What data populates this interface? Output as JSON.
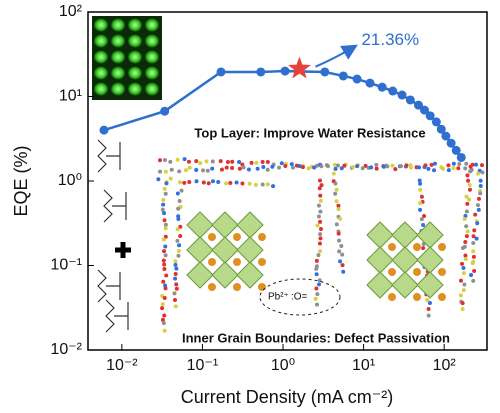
{
  "chart_data": {
    "type": "line",
    "x_label": "Current Density (mA cm⁻²)",
    "y_label": "EQE (%)",
    "log_x": true,
    "log_y": true,
    "xlim": [
      0.0038,
      340
    ],
    "ylim": [
      0.01,
      100
    ],
    "xticks": [
      {
        "value": 0.01,
        "label": "10⁻²"
      },
      {
        "value": 0.1,
        "label": "10⁻¹"
      },
      {
        "value": 1,
        "label": "10⁰"
      },
      {
        "value": 10,
        "label": "10¹"
      },
      {
        "value": 100,
        "label": "10²"
      }
    ],
    "yticks": [
      {
        "value": 0.01,
        "label": "10⁻²"
      },
      {
        "value": 0.1,
        "label": "10⁻¹"
      },
      {
        "value": 1,
        "label": "10⁰"
      },
      {
        "value": 10,
        "label": "10¹"
      },
      {
        "value": 100,
        "label": "10²"
      }
    ],
    "series": [
      {
        "color": "#2f6fcd",
        "x": [
          0.006,
          0.034,
          0.17,
          0.53,
          1.06,
          3.3,
          5.6,
          8.3,
          12,
          17,
          23,
          30,
          38,
          48,
          57,
          67,
          80,
          92,
          105,
          122,
          141,
          163
        ],
        "values": [
          4.0,
          6.7,
          19.5,
          19.5,
          20,
          19.5,
          17.5,
          16.1,
          14.4,
          12.9,
          11.6,
          10.4,
          9.1,
          7.9,
          6.9,
          5.9,
          5.0,
          4.1,
          3.4,
          2.8,
          2.3,
          1.9
        ]
      }
    ],
    "peak": {
      "x": 1.6,
      "y": 21.36,
      "label": "21.36%",
      "color": "#e8413a"
    },
    "annotations": [
      "Top Layer: Improve Water Resistance",
      "Inner Grain Boundaries: Defect Passivation",
      "Pb²⁺",
      ":O="
    ]
  }
}
